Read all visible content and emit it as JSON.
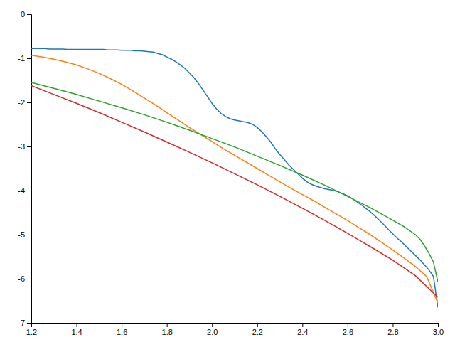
{
  "chart_data": {
    "type": "line",
    "xlim": [
      1.2,
      3.0
    ],
    "ylim": [
      -7,
      0
    ],
    "xticks": [
      1.2,
      1.4,
      1.6,
      1.8,
      {
        "value": 2.0,
        "label": "2.0"
      },
      2.2,
      2.4,
      2.6,
      2.8,
      {
        "value": 3.0,
        "label": "3.0"
      }
    ],
    "yticks": [
      0,
      -1,
      -2,
      -3,
      -4,
      -5,
      -6,
      -7
    ],
    "grid": false,
    "series": [
      {
        "x": [
          1.2,
          1.22,
          1.24,
          1.26,
          1.28,
          1.3,
          1.32,
          1.34,
          1.36,
          1.38,
          1.4,
          1.42,
          1.44,
          1.46,
          1.48,
          1.5,
          1.52,
          1.54,
          1.56,
          1.58,
          1.6,
          1.62,
          1.64,
          1.66,
          1.68,
          1.7,
          1.72,
          1.74,
          1.76,
          1.78,
          1.8,
          1.82,
          1.84,
          1.86,
          1.88,
          1.9,
          1.92,
          1.94,
          1.96,
          1.98,
          2.0,
          2.02,
          2.04,
          2.06,
          2.08,
          2.1,
          2.12,
          2.14,
          2.16,
          2.18,
          2.2,
          2.22,
          2.24,
          2.26,
          2.28,
          2.3,
          2.32,
          2.34,
          2.36,
          2.38,
          2.4,
          2.42,
          2.44,
          2.46,
          2.48,
          2.5,
          2.52,
          2.54,
          2.56,
          2.58,
          2.6,
          2.62,
          2.64,
          2.66,
          2.68,
          2.7,
          2.72,
          2.74,
          2.76,
          2.78,
          2.8,
          2.82,
          2.84,
          2.86,
          2.88,
          2.9,
          2.92,
          2.94,
          2.96,
          2.98,
          3.0
        ],
        "values": [
          -0.78,
          -0.78,
          -0.78,
          -0.78,
          -0.79,
          -0.79,
          -0.79,
          -0.79,
          -0.8,
          -0.8,
          -0.8,
          -0.8,
          -0.8,
          -0.8,
          -0.8,
          -0.8,
          -0.8,
          -0.81,
          -0.81,
          -0.81,
          -0.82,
          -0.82,
          -0.82,
          -0.83,
          -0.83,
          -0.84,
          -0.85,
          -0.86,
          -0.89,
          -0.92,
          -0.97,
          -1.02,
          -1.08,
          -1.15,
          -1.23,
          -1.33,
          -1.44,
          -1.57,
          -1.72,
          -1.87,
          -2.02,
          -2.15,
          -2.25,
          -2.32,
          -2.37,
          -2.4,
          -2.42,
          -2.44,
          -2.46,
          -2.5,
          -2.57,
          -2.66,
          -2.78,
          -2.9,
          -3.05,
          -3.18,
          -3.3,
          -3.42,
          -3.52,
          -3.62,
          -3.72,
          -3.8,
          -3.86,
          -3.9,
          -3.93,
          -3.96,
          -3.98,
          -4.0,
          -4.03,
          -4.07,
          -4.12,
          -4.18,
          -4.25,
          -4.32,
          -4.4,
          -4.48,
          -4.57,
          -4.67,
          -4.77,
          -4.88,
          -4.98,
          -5.08,
          -5.17,
          -5.27,
          -5.37,
          -5.47,
          -5.57,
          -5.68,
          -5.8,
          -5.95,
          -6.65
        ]
      },
      {
        "x": [
          1.2,
          1.25,
          1.3,
          1.35,
          1.4,
          1.45,
          1.5,
          1.55,
          1.6,
          1.65,
          1.7,
          1.75,
          1.8,
          1.85,
          1.9,
          1.95,
          2.0,
          2.05,
          2.1,
          2.15,
          2.2,
          2.25,
          2.3,
          2.35,
          2.4,
          2.45,
          2.5,
          2.55,
          2.6,
          2.65,
          2.7,
          2.75,
          2.8,
          2.85,
          2.9,
          2.95,
          3.0
        ],
        "values": [
          -0.93,
          -0.97,
          -1.02,
          -1.08,
          -1.15,
          -1.24,
          -1.34,
          -1.46,
          -1.59,
          -1.74,
          -1.9,
          -2.06,
          -2.23,
          -2.4,
          -2.57,
          -2.73,
          -2.89,
          -3.05,
          -3.2,
          -3.35,
          -3.5,
          -3.65,
          -3.8,
          -3.95,
          -4.09,
          -4.23,
          -4.38,
          -4.53,
          -4.68,
          -4.84,
          -5.0,
          -5.17,
          -5.35,
          -5.53,
          -5.72,
          -5.95,
          -6.55
        ]
      },
      {
        "x": [
          1.2,
          1.3,
          1.4,
          1.5,
          1.6,
          1.7,
          1.8,
          1.9,
          2.0,
          2.1,
          2.2,
          2.3,
          2.4,
          2.5,
          2.6,
          2.7,
          2.8,
          2.85,
          2.9,
          2.92,
          2.94,
          2.96,
          2.98,
          3.0
        ],
        "values": [
          -1.55,
          -1.68,
          -1.82,
          -1.97,
          -2.12,
          -2.28,
          -2.45,
          -2.63,
          -2.82,
          -3.01,
          -3.22,
          -3.43,
          -3.65,
          -3.88,
          -4.13,
          -4.39,
          -4.67,
          -4.82,
          -5.0,
          -5.1,
          -5.25,
          -5.42,
          -5.62,
          -6.08
        ]
      },
      {
        "x": [
          1.2,
          1.3,
          1.4,
          1.5,
          1.6,
          1.7,
          1.8,
          1.9,
          2.0,
          2.1,
          2.2,
          2.3,
          2.4,
          2.5,
          2.6,
          2.7,
          2.8,
          2.9,
          3.0
        ],
        "values": [
          -1.62,
          -1.82,
          -2.02,
          -2.23,
          -2.45,
          -2.67,
          -2.9,
          -3.13,
          -3.37,
          -3.62,
          -3.87,
          -4.13,
          -4.4,
          -4.68,
          -4.97,
          -5.27,
          -5.58,
          -5.93,
          -6.42
        ]
      }
    ]
  }
}
